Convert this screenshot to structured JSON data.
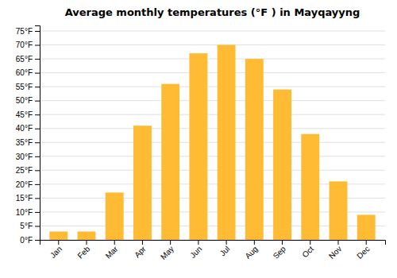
{
  "chart_data": {
    "type": "bar",
    "title": "Average monthly temperatures (°F ) in Mayqayyng",
    "categories": [
      "Jan",
      "Feb",
      "Mar",
      "Apr",
      "May",
      "Jun",
      "Jul",
      "Aug",
      "Sep",
      "Oct",
      "Nov",
      "Dec"
    ],
    "values": [
      3,
      3,
      17,
      41,
      56,
      67,
      70,
      65,
      54,
      38,
      21,
      9
    ],
    "color": "#FFBB33",
    "ylim": [
      0,
      77
    ],
    "yticks": [
      {
        "value": 0,
        "label": "0°F"
      },
      {
        "value": 5,
        "label": "5°F"
      },
      {
        "value": 10,
        "label": "10°F"
      },
      {
        "value": 15,
        "label": "15°F"
      },
      {
        "value": 20,
        "label": "20°F"
      },
      {
        "value": 25,
        "label": "25°F"
      },
      {
        "value": 30,
        "label": "30°F"
      },
      {
        "value": 35,
        "label": "35°F"
      },
      {
        "value": 40,
        "label": "40°F"
      },
      {
        "value": 45,
        "label": "45°F"
      },
      {
        "value": 50,
        "label": "50°F"
      },
      {
        "value": 55,
        "label": "55°F"
      },
      {
        "value": 60,
        "label": "60°F"
      },
      {
        "value": 65,
        "label": "65°F"
      },
      {
        "value": 70,
        "label": "70°F"
      },
      {
        "value": 75,
        "label": "75°F"
      }
    ],
    "grid": true
  }
}
